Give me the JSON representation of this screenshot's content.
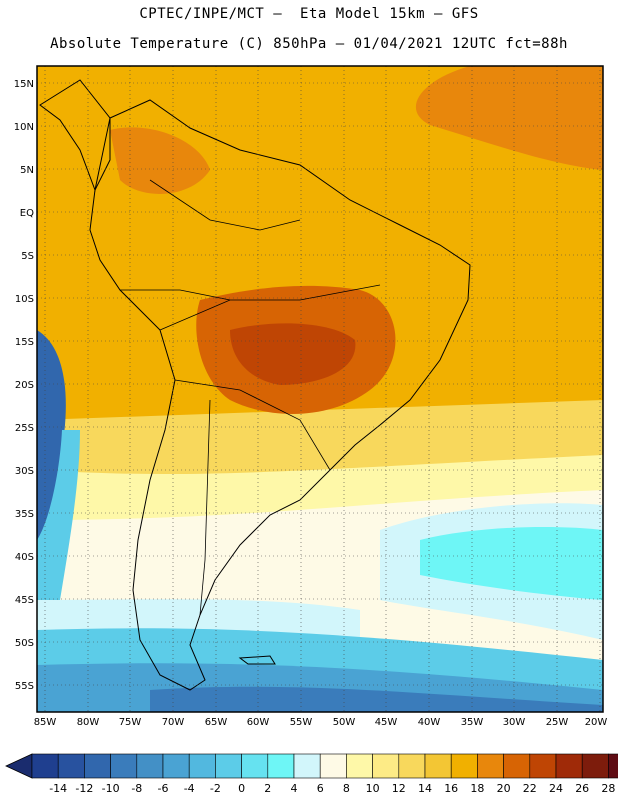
{
  "header": {
    "title_line1": "CPTEC/INPE/MCT –  Eta Model 15km – GFS",
    "title_line2": "Absolute Temperature (C) 850hPa – 01/04/2021 12UTC fct=88h"
  },
  "map": {
    "lat_labels": [
      "15N",
      "10N",
      "5N",
      "EQ",
      "5S",
      "10S",
      "15S",
      "20S",
      "25S",
      "30S",
      "35S",
      "40S",
      "45S",
      "50S",
      "55S"
    ],
    "lon_labels": [
      "85W",
      "80W",
      "75W",
      "70W",
      "65W",
      "60W",
      "55W",
      "50W",
      "45W",
      "40W",
      "35W",
      "30W",
      "25W",
      "20W"
    ]
  },
  "colorbar": {
    "labels": [
      "-14",
      "-12",
      "-10",
      "-8",
      "-6",
      "-4",
      "-2",
      "0",
      "2",
      "4",
      "6",
      "8",
      "10",
      "12",
      "14",
      "16",
      "18",
      "20",
      "22",
      "24",
      "26",
      "28"
    ],
    "colors": [
      "#1f3f8f",
      "#28529f",
      "#3167ad",
      "#3a7cbb",
      "#4390c6",
      "#4aa3d3",
      "#52b8df",
      "#5ccce8",
      "#66e2f0",
      "#6ef6f6",
      "#d2f6fb",
      "#fefae6",
      "#fef8a8",
      "#fdeb86",
      "#f8d85c",
      "#f3c634",
      "#f1b000",
      "#e8870c",
      "#d76404",
      "#bf4504",
      "#9f2a08",
      "#7d1c0c",
      "#5f0c14"
    ],
    "low_color": "#1a2c6e",
    "high_color": "#6a0a1a"
  }
}
